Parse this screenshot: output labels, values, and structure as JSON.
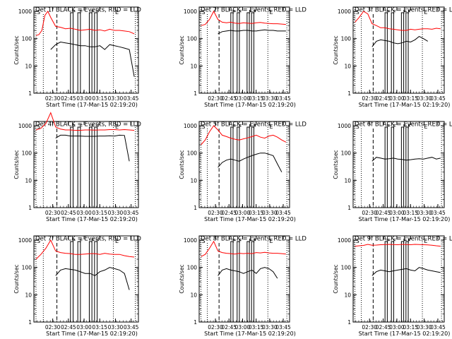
{
  "chart_data": [
    {
      "type": "line",
      "title": "Det 1f BLACK = Events, RED = LLD",
      "xlabel": "Start Time (17-Mar-15 02:19:20)",
      "ylabel": "Counts/sec",
      "yscale": "log",
      "ylim": [
        1,
        1000
      ],
      "xticks": [
        "02:30",
        "02:45",
        "03:00",
        "03:15",
        "03:30",
        "03:45"
      ],
      "ytick_labels": [
        "1",
        "10",
        "100",
        "1000"
      ],
      "markers": [
        "S",
        "F",
        "F",
        "F",
        "F",
        "E"
      ],
      "series": [
        {
          "name": "LLD",
          "color": "#ff0000",
          "x": [
            0,
            0.03,
            0.06,
            0.09,
            0.12,
            0.15,
            0.2,
            0.25,
            0.3,
            0.35,
            0.4,
            0.45,
            0.5,
            0.55,
            0.6,
            0.65,
            0.7,
            0.75,
            0.8,
            0.85,
            0.9,
            0.95,
            1.0
          ],
          "y": [
            130,
            140,
            200,
            700,
            1000,
            600,
            280,
            260,
            230,
            240,
            220,
            200,
            210,
            220,
            200,
            210,
            190,
            220,
            200,
            200,
            190,
            180,
            150
          ]
        },
        {
          "name": "Events",
          "color": "#000000",
          "x": [
            0.15,
            0.2,
            0.25,
            0.3,
            0.35,
            0.4,
            0.45,
            0.5,
            0.55,
            0.6,
            0.65,
            0.7,
            0.75,
            0.8,
            0.85,
            0.9,
            0.95,
            1.0
          ],
          "y": [
            40,
            60,
            75,
            70,
            65,
            60,
            55,
            55,
            50,
            50,
            55,
            40,
            60,
            55,
            50,
            45,
            40,
            4
          ]
        }
      ]
    },
    {
      "type": "line",
      "title": "Det 2f BLACK = Events, RED = LLD",
      "xlabel": "Start Time (17-Mar-15 02:19:20)",
      "ylabel": "Counts/sec",
      "yscale": "log",
      "ylim": [
        1,
        1000
      ],
      "xticks": [
        "02:30",
        "02:45",
        "03:00",
        "03:15",
        "03:30",
        "03:45"
      ],
      "ytick_labels": [
        "1",
        "10",
        "100",
        "1000"
      ],
      "markers": [
        "S",
        "F",
        "F",
        "F",
        "F",
        "E"
      ],
      "series": [
        {
          "name": "LLD",
          "color": "#ff0000",
          "x": [
            0,
            0.05,
            0.1,
            0.15,
            0.2,
            0.25,
            0.3,
            0.35,
            0.4,
            0.45,
            0.5,
            0.55,
            0.6,
            0.65,
            0.7,
            0.75,
            0.8,
            0.85,
            0.9,
            0.95,
            1.0
          ],
          "y": [
            300,
            330,
            500,
            1000,
            500,
            400,
            380,
            400,
            370,
            360,
            380,
            370,
            360,
            380,
            390,
            370,
            360,
            350,
            350,
            340,
            330
          ]
        },
        {
          "name": "Events",
          "color": "#000000",
          "x": [
            0.2,
            0.25,
            0.3,
            0.35,
            0.4,
            0.45,
            0.5,
            0.55,
            0.6,
            0.65,
            0.7,
            0.75,
            0.8,
            0.85,
            0.9,
            0.95,
            1.0
          ],
          "y": [
            150,
            180,
            190,
            200,
            190,
            190,
            200,
            200,
            190,
            190,
            200,
            210,
            200,
            200,
            190,
            190,
            190
          ]
        }
      ]
    },
    {
      "type": "line",
      "title": "Det 3f BLACK = Events, RED = LLD",
      "xlabel": "Start Time (17-Mar-15 02:19:20)",
      "ylabel": "Counts/sec",
      "yscale": "log",
      "ylim": [
        1,
        1000
      ],
      "xticks": [
        "02:30",
        "02:45",
        "03:00",
        "03:15",
        "03:30",
        "03:45"
      ],
      "ytick_labels": [
        "1",
        "10",
        "100",
        "1000"
      ],
      "markers": [
        "S",
        "F",
        "F",
        "F",
        "F",
        "E"
      ],
      "series": [
        {
          "name": "LLD",
          "color": "#ff0000",
          "x": [
            0,
            0.05,
            0.1,
            0.15,
            0.2,
            0.25,
            0.3,
            0.35,
            0.4,
            0.45,
            0.5,
            0.55,
            0.6,
            0.65,
            0.7,
            0.75,
            0.8,
            0.85,
            0.9,
            0.95,
            1.0
          ],
          "y": [
            400,
            600,
            1000,
            800,
            350,
            300,
            250,
            250,
            230,
            220,
            210,
            200,
            200,
            220,
            210,
            220,
            230,
            230,
            220,
            240,
            230
          ]
        },
        {
          "name": "Events",
          "color": "#000000",
          "x": [
            0.2,
            0.25,
            0.3,
            0.35,
            0.4,
            0.45,
            0.5,
            0.55,
            0.6,
            0.65,
            0.7,
            0.75,
            0.8,
            0.85
          ],
          "y": [
            50,
            80,
            90,
            85,
            80,
            70,
            65,
            70,
            80,
            75,
            90,
            120,
            100,
            80
          ]
        }
      ]
    },
    {
      "type": "line",
      "title": "Det 4f BLACK = Events, RED = LLD",
      "xlabel": "Start Time (17-Mar-15 02:19:20)",
      "ylabel": "Counts/sec",
      "yscale": "log",
      "ylim": [
        1,
        1000
      ],
      "xticks": [
        "02:30",
        "02:45",
        "03:00",
        "03:15",
        "03:30",
        "03:45"
      ],
      "ytick_labels": [
        "1",
        "10",
        "100",
        "1000"
      ],
      "markers": [
        "S",
        "F",
        "F",
        "F",
        "F",
        "E"
      ],
      "series": [
        {
          "name": "LLD",
          "color": "#ff0000",
          "x": [
            0,
            0.05,
            0.1,
            0.15,
            0.2,
            0.25,
            0.3,
            0.35,
            0.4,
            0.45,
            0.5,
            0.55,
            0.6,
            0.65,
            0.7,
            0.75,
            0.8,
            0.85,
            0.9,
            0.95,
            1.0
          ],
          "y": [
            700,
            800,
            1200,
            3000,
            900,
            750,
            700,
            700,
            680,
            680,
            700,
            700,
            690,
            700,
            700,
            720,
            720,
            700,
            720,
            700,
            680
          ]
        },
        {
          "name": "Events",
          "color": "#000000",
          "x": [
            0.2,
            0.25,
            0.3,
            0.35,
            0.4,
            0.45,
            0.5,
            0.55,
            0.6,
            0.65,
            0.7,
            0.75,
            0.8,
            0.85,
            0.9,
            0.95
          ],
          "y": [
            350,
            450,
            450,
            420,
            420,
            420,
            410,
            410,
            410,
            420,
            420,
            430,
            420,
            450,
            440,
            50
          ]
        }
      ]
    },
    {
      "type": "line",
      "title": "Det 5f BLACK = Events, RED = LLD",
      "xlabel": "Start Time (17-Mar-15 02:19:20)",
      "ylabel": "Counts/sec",
      "yscale": "log",
      "ylim": [
        1,
        1000
      ],
      "xticks": [
        "02:30",
        "02:45",
        "03:00",
        "03:15",
        "03:30",
        "03:45"
      ],
      "ytick_labels": [
        "1",
        "10",
        "100",
        "1000"
      ],
      "markers": [
        "S",
        "F",
        "F",
        "F",
        "F",
        "E"
      ],
      "series": [
        {
          "name": "LLD",
          "color": "#ff0000",
          "x": [
            0,
            0.05,
            0.1,
            0.15,
            0.2,
            0.25,
            0.3,
            0.35,
            0.4,
            0.45,
            0.5,
            0.55,
            0.6,
            0.65,
            0.7,
            0.75,
            0.8,
            0.85,
            0.9,
            0.95,
            1.0
          ],
          "y": [
            200,
            300,
            600,
            1000,
            700,
            450,
            400,
            350,
            320,
            300,
            330,
            360,
            400,
            450,
            380,
            350,
            420,
            450,
            380,
            300,
            250
          ]
        },
        {
          "name": "Events",
          "color": "#000000",
          "x": [
            0.2,
            0.25,
            0.3,
            0.35,
            0.4,
            0.45,
            0.5,
            0.55,
            0.6,
            0.65,
            0.7,
            0.75,
            0.8,
            0.85,
            0.9,
            0.95
          ],
          "y": [
            30,
            45,
            55,
            60,
            55,
            50,
            60,
            70,
            80,
            90,
            100,
            100,
            90,
            80,
            40,
            20
          ]
        }
      ]
    },
    {
      "type": "line",
      "title": "Det 6f BLACK = Events, RED = LLD",
      "xlabel": "Start Time (17-Mar-15 02:19:20)",
      "ylabel": "Counts/sec",
      "yscale": "log",
      "ylim": [
        1,
        1000
      ],
      "xticks": [
        "02:30",
        "02:45",
        "03:00",
        "03:15",
        "03:30",
        "03:45"
      ],
      "ytick_labels": [
        "1",
        "10",
        "100",
        "1000"
      ],
      "markers": [
        "S",
        "F",
        "F",
        "F",
        "F",
        "E"
      ],
      "series": [
        {
          "name": "Events",
          "color": "#000000",
          "x": [
            0.2,
            0.25,
            0.3,
            0.35,
            0.4,
            0.45,
            0.5,
            0.55,
            0.6,
            0.65,
            0.7,
            0.75,
            0.8,
            0.85,
            0.9,
            0.95,
            1.0
          ],
          "y": [
            50,
            70,
            65,
            60,
            62,
            65,
            60,
            58,
            55,
            57,
            60,
            62,
            60,
            65,
            70,
            60,
            65
          ]
        }
      ]
    },
    {
      "type": "line",
      "title": "Det 7f BLACK = Events, RED = LLD",
      "xlabel": "Start Time (17-Mar-15 02:19:20)",
      "ylabel": "Counts/sec",
      "yscale": "log",
      "ylim": [
        1,
        1000
      ],
      "xticks": [
        "02:30",
        "02:45",
        "03:00",
        "03:15",
        "03:30",
        "03:45"
      ],
      "ytick_labels": [
        "1",
        "10",
        "100",
        "1000"
      ],
      "markers": [
        "S",
        "F",
        "F",
        "F",
        "F",
        "E"
      ],
      "series": [
        {
          "name": "LLD",
          "color": "#ff0000",
          "x": [
            0,
            0.05,
            0.1,
            0.15,
            0.2,
            0.25,
            0.3,
            0.35,
            0.4,
            0.45,
            0.5,
            0.55,
            0.6,
            0.65,
            0.7,
            0.75,
            0.8,
            0.85,
            0.9,
            0.95,
            1.0
          ],
          "y": [
            200,
            300,
            500,
            1000,
            400,
            350,
            330,
            320,
            300,
            300,
            310,
            320,
            320,
            300,
            330,
            310,
            300,
            300,
            270,
            250,
            240
          ]
        },
        {
          "name": "Events",
          "color": "#000000",
          "x": [
            0.2,
            0.25,
            0.3,
            0.35,
            0.4,
            0.45,
            0.5,
            0.55,
            0.6,
            0.65,
            0.7,
            0.75,
            0.8,
            0.85,
            0.9,
            0.95
          ],
          "y": [
            50,
            80,
            90,
            85,
            80,
            70,
            60,
            60,
            50,
            70,
            80,
            100,
            90,
            80,
            60,
            15
          ]
        }
      ]
    },
    {
      "type": "line",
      "title": "Det 8f BLACK = Events, RED = LLD",
      "xlabel": "Start Time (17-Mar-15 02:19:20)",
      "ylabel": "Counts/sec",
      "yscale": "log",
      "ylim": [
        1,
        1000
      ],
      "xticks": [
        "02:30",
        "02:45",
        "03:00",
        "03:15",
        "03:30",
        "03:45"
      ],
      "ytick_labels": [
        "1",
        "10",
        "100",
        "1000"
      ],
      "markers": [
        "S",
        "F",
        "F",
        "F",
        "F",
        "E"
      ],
      "series": [
        {
          "name": "LLD",
          "color": "#ff0000",
          "x": [
            0,
            0.05,
            0.1,
            0.15,
            0.2,
            0.25,
            0.3,
            0.35,
            0.4,
            0.45,
            0.5,
            0.55,
            0.6,
            0.65,
            0.7,
            0.75,
            0.8,
            0.85,
            0.9,
            0.95,
            1.0
          ],
          "y": [
            250,
            300,
            500,
            900,
            400,
            350,
            330,
            320,
            310,
            330,
            320,
            330,
            320,
            350,
            340,
            360,
            340,
            330,
            330,
            320,
            310
          ]
        },
        {
          "name": "Events",
          "color": "#000000",
          "x": [
            0.2,
            0.25,
            0.3,
            0.35,
            0.4,
            0.45,
            0.5,
            0.55,
            0.6,
            0.65,
            0.7,
            0.75,
            0.8,
            0.85,
            0.9
          ],
          "y": [
            50,
            80,
            90,
            80,
            75,
            70,
            60,
            70,
            80,
            60,
            90,
            100,
            90,
            70,
            40
          ]
        }
      ]
    },
    {
      "type": "line",
      "title": "Det 9f BLACK = Events, RED = LLD",
      "xlabel": "Start Time (17-Mar-15 02:19:20)",
      "ylabel": "Counts/sec",
      "yscale": "log",
      "ylim": [
        1,
        1000
      ],
      "xticks": [
        "02:30",
        "02:45",
        "03:00",
        "03:15",
        "03:30",
        "03:45"
      ],
      "ytick_labels": [
        "1",
        "10",
        "100",
        "1000"
      ],
      "markers": [
        "S",
        "F",
        "F",
        "F",
        "F",
        "E"
      ],
      "series": [
        {
          "name": "LLD",
          "color": "#ff0000",
          "x": [
            0,
            0.05,
            0.1,
            0.15,
            0.2,
            0.25,
            0.3,
            0.35,
            0.4,
            0.45,
            0.5,
            0.55,
            0.6,
            0.65,
            0.7,
            0.75,
            0.8,
            0.85,
            0.9,
            0.95,
            1.0
          ],
          "y": [
            600,
            620,
            640,
            700,
            650,
            660,
            680,
            690,
            700,
            690,
            680,
            700,
            690,
            680,
            700,
            690,
            680,
            670,
            650,
            620,
            600
          ]
        },
        {
          "name": "Events",
          "color": "#000000",
          "x": [
            0.2,
            0.25,
            0.3,
            0.35,
            0.4,
            0.45,
            0.5,
            0.55,
            0.6,
            0.65,
            0.7,
            0.75,
            0.8,
            0.85,
            0.9,
            0.95,
            1.0
          ],
          "y": [
            50,
            70,
            80,
            75,
            70,
            75,
            80,
            85,
            90,
            80,
            75,
            100,
            90,
            80,
            75,
            70,
            65
          ]
        }
      ]
    }
  ]
}
